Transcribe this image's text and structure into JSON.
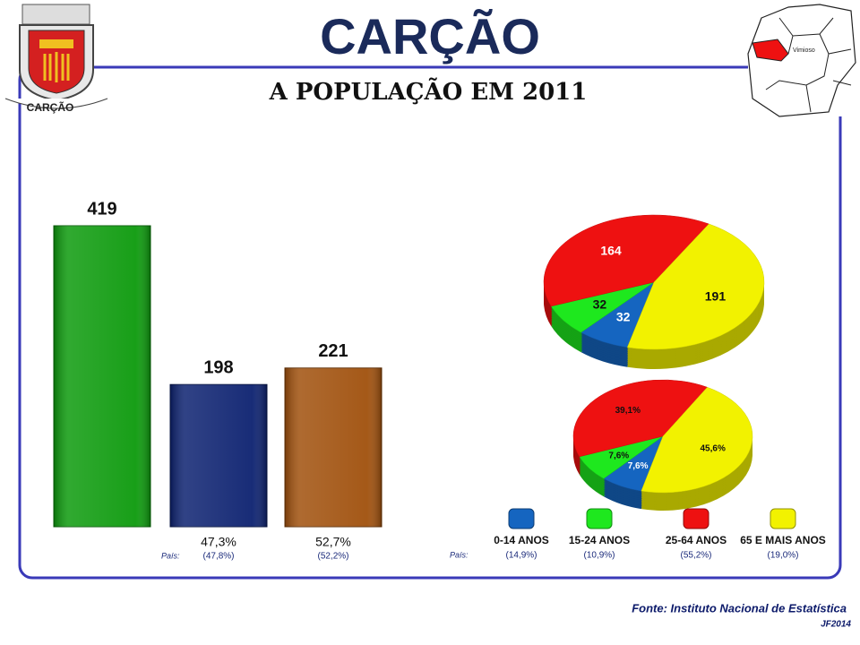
{
  "title": "CARÇÃO",
  "subtitle": "A POPULAÇÃO EM 2011",
  "crest_label": "CARÇÃO",
  "map_label": "Vimioso",
  "source": "Fonte: Instituto Nacional de Estatística",
  "credit": "JF2014",
  "chart_data": [
    {
      "type": "bar",
      "values": [
        419,
        198,
        221
      ],
      "colors": [
        "#0c9a0c",
        "#0c2170",
        "#a0500c"
      ],
      "shares": [
        null,
        "47,3%",
        "52,7%"
      ],
      "country_label": "País:",
      "country_shares": [
        null,
        "(47,8%)",
        "(52,2%)"
      ]
    },
    {
      "type": "pie",
      "categories": [
        "0-14 ANOS",
        "15-24 ANOS",
        "25-64 ANOS",
        "65 E MAIS ANOS"
      ],
      "values": [
        32,
        32,
        164,
        191
      ],
      "colors": [
        "#1565c0",
        "#1ee81e",
        "#ee1111",
        "#f2f200"
      ],
      "country_label": "País:",
      "country_values": [
        "(14,9%)",
        "(10,9%)",
        "(55,2%)",
        "(19,0%)"
      ]
    },
    {
      "type": "pie",
      "values": [
        7.6,
        7.6,
        39.1,
        45.6
      ],
      "value_labels": [
        "7,6%",
        "7,6%",
        "39,1%",
        "45,6%"
      ],
      "colors": [
        "#1565c0",
        "#1ee81e",
        "#ee1111",
        "#f2f200"
      ]
    }
  ]
}
